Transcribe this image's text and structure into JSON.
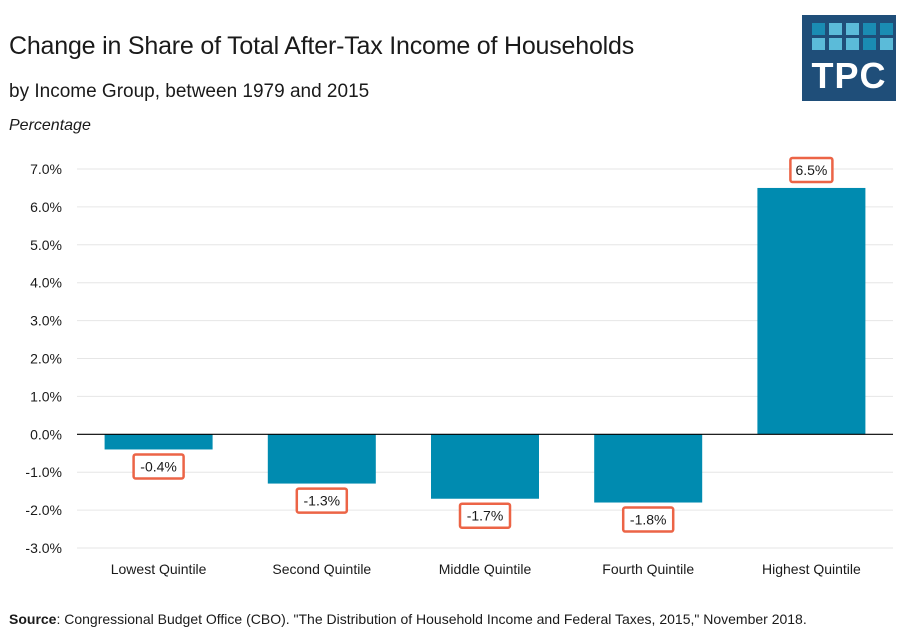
{
  "header": {
    "title": "Change in Share of Total After-Tax Income of Households",
    "subtitle": "by Income Group, between 1979 and 2015",
    "unit_label": "Percentage"
  },
  "logo": {
    "text": "TPC",
    "background": "#1f4e79",
    "tile_colors": [
      "#1a8cb3",
      "#5bbbd9",
      "#5bbbd9",
      "#1a8cb3",
      "#1a8cb3",
      "#5bbbd9",
      "#5bbbd9",
      "#5bbbd9",
      "#1a8cb3",
      "#5bbbd9"
    ]
  },
  "colors": {
    "bar": "#008bb0",
    "label_border": "#ec6446",
    "gridline": "#e6e6e6",
    "zero_line": "#000000"
  },
  "chart_data": {
    "type": "bar",
    "title": "Change in Share of Total After-Tax Income of Households",
    "subtitle": "by Income Group, between 1979 and 2015",
    "xlabel": "",
    "ylabel": "Percentage",
    "categories": [
      "Lowest Quintile",
      "Second Quintile",
      "Middle Quintile",
      "Fourth Quintile",
      "Highest Quintile"
    ],
    "values": [
      -0.4,
      -1.3,
      -1.7,
      -1.8,
      6.5
    ],
    "data_labels": [
      "-0.4%",
      "-1.3%",
      "-1.7%",
      "-1.8%",
      "6.5%"
    ],
    "ylim": [
      -3.0,
      7.0
    ],
    "yticks": [
      7.0,
      6.0,
      5.0,
      4.0,
      3.0,
      2.0,
      1.0,
      0.0,
      -1.0,
      -2.0,
      -3.0
    ],
    "ytick_labels": [
      "7.0%",
      "6.0%",
      "5.0%",
      "4.0%",
      "3.0%",
      "2.0%",
      "1.0%",
      "0.0%",
      "-1.0%",
      "-2.0%",
      "-3.0%"
    ],
    "grid": true,
    "legend": "none"
  },
  "footer": {
    "source_label": "Source",
    "source_text": ": Congressional Budget Office (CBO). \"The Distribution of Household Income and Federal Taxes, 2015,\" November 2018."
  }
}
